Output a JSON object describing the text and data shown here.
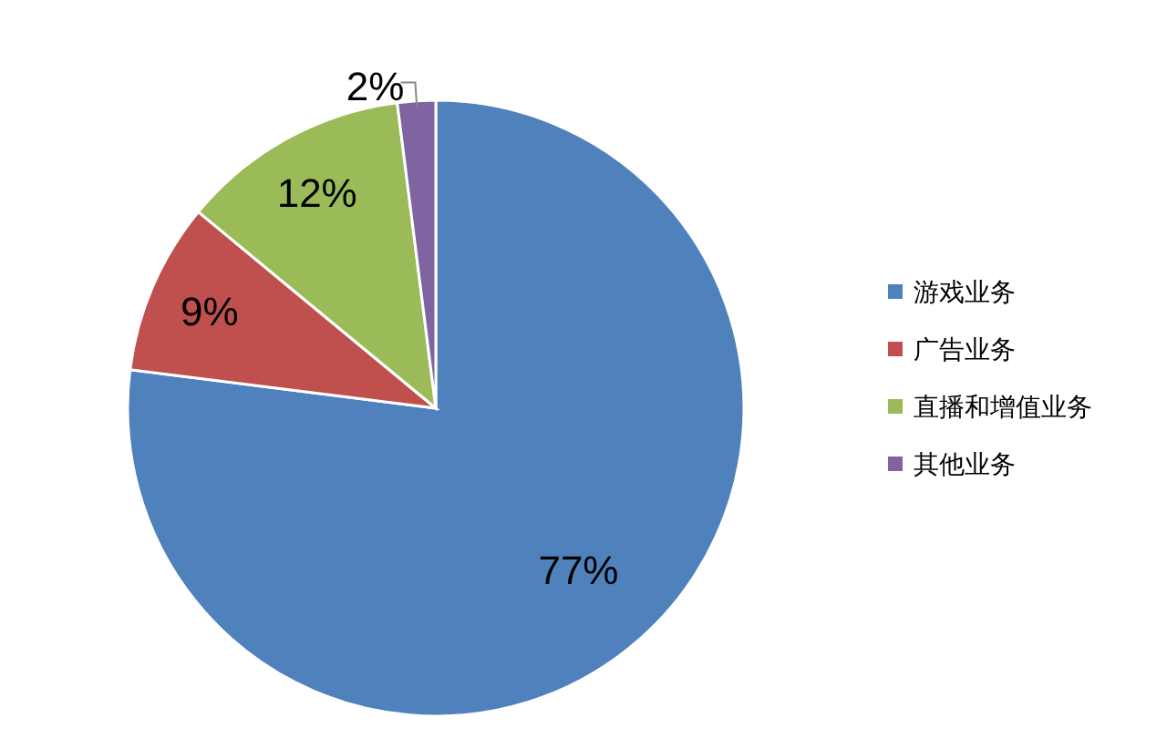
{
  "chart_data": {
    "type": "pie",
    "categories": [
      "游戏业务",
      "广告业务",
      "直播和增值业务",
      "其他业务"
    ],
    "values": [
      77,
      9,
      12,
      2
    ],
    "colors": [
      "#4f81bd",
      "#c0504d",
      "#9bbb59",
      "#8064a2"
    ],
    "value_labels": [
      "77%",
      "9%",
      "12%",
      "2%"
    ],
    "legend": "right"
  }
}
